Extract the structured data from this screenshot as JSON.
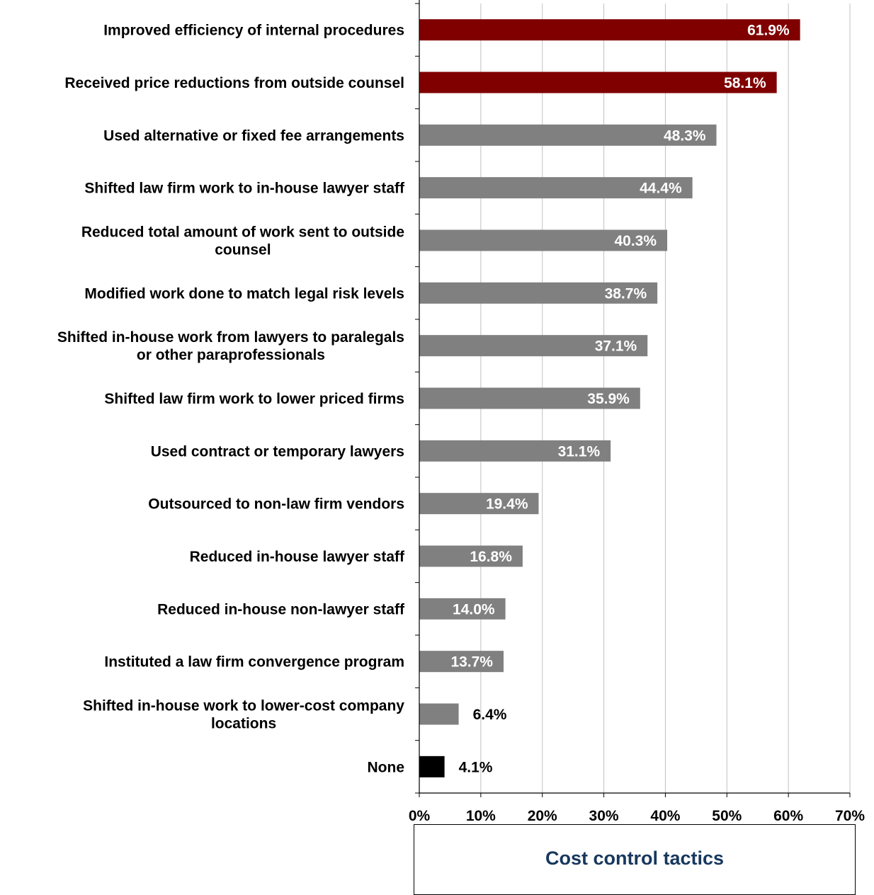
{
  "chart_data": {
    "type": "bar",
    "orientation": "horizontal",
    "categories": [
      [
        "Improved efficiency of internal procedures"
      ],
      [
        "Received price reductions from outside counsel"
      ],
      [
        "Used alternative or fixed fee arrangements"
      ],
      [
        "Shifted law firm work to in-house lawyer staff"
      ],
      [
        "Reduced total amount of work sent to outside",
        "counsel"
      ],
      [
        "Modified work done to match legal risk levels"
      ],
      [
        "Shifted in-house work from lawyers to paralegals",
        "or other paraprofessionals"
      ],
      [
        "Shifted law firm work to lower priced firms"
      ],
      [
        "Used contract or temporary lawyers"
      ],
      [
        "Outsourced to non-law firm vendors"
      ],
      [
        "Reduced in-house lawyer staff"
      ],
      [
        "Reduced in-house non-lawyer staff"
      ],
      [
        "Instituted a law firm convergence program"
      ],
      [
        "Shifted in-house work to lower-cost company",
        "locations"
      ],
      [
        "None"
      ]
    ],
    "values": [
      61.9,
      58.1,
      48.3,
      44.4,
      40.3,
      38.7,
      37.1,
      35.9,
      31.1,
      19.4,
      16.8,
      14.0,
      13.7,
      6.4,
      4.1
    ],
    "value_labels": [
      "61.9%",
      "58.1%",
      "48.3%",
      "44.4%",
      "40.3%",
      "38.7%",
      "37.1%",
      "35.9%",
      "31.1%",
      "19.4%",
      "16.8%",
      "14.0%",
      "13.7%",
      "6.4%",
      "4.1%"
    ],
    "bar_colors": [
      "#800000",
      "#800000",
      "#808080",
      "#808080",
      "#808080",
      "#808080",
      "#808080",
      "#808080",
      "#808080",
      "#808080",
      "#808080",
      "#808080",
      "#808080",
      "#808080",
      "#000000"
    ],
    "label_inside": [
      true,
      true,
      true,
      true,
      true,
      true,
      true,
      true,
      true,
      true,
      true,
      true,
      true,
      false,
      false
    ],
    "xlim": [
      0,
      70
    ],
    "xticks": [
      0,
      10,
      20,
      30,
      40,
      50,
      60,
      70
    ],
    "xtick_labels": [
      "0%",
      "10%",
      "20%",
      "30%",
      "40%",
      "50%",
      "60%",
      "70%"
    ],
    "grid": "vertical",
    "legend": "Cost control tactics",
    "legend_placement": "bottom",
    "title": "",
    "xlabel": "",
    "ylabel": ""
  },
  "colors": {
    "highlight": "#800000",
    "default": "#808080",
    "none": "#000000",
    "caption": "#17375e",
    "grid": "#c0c0c0"
  }
}
